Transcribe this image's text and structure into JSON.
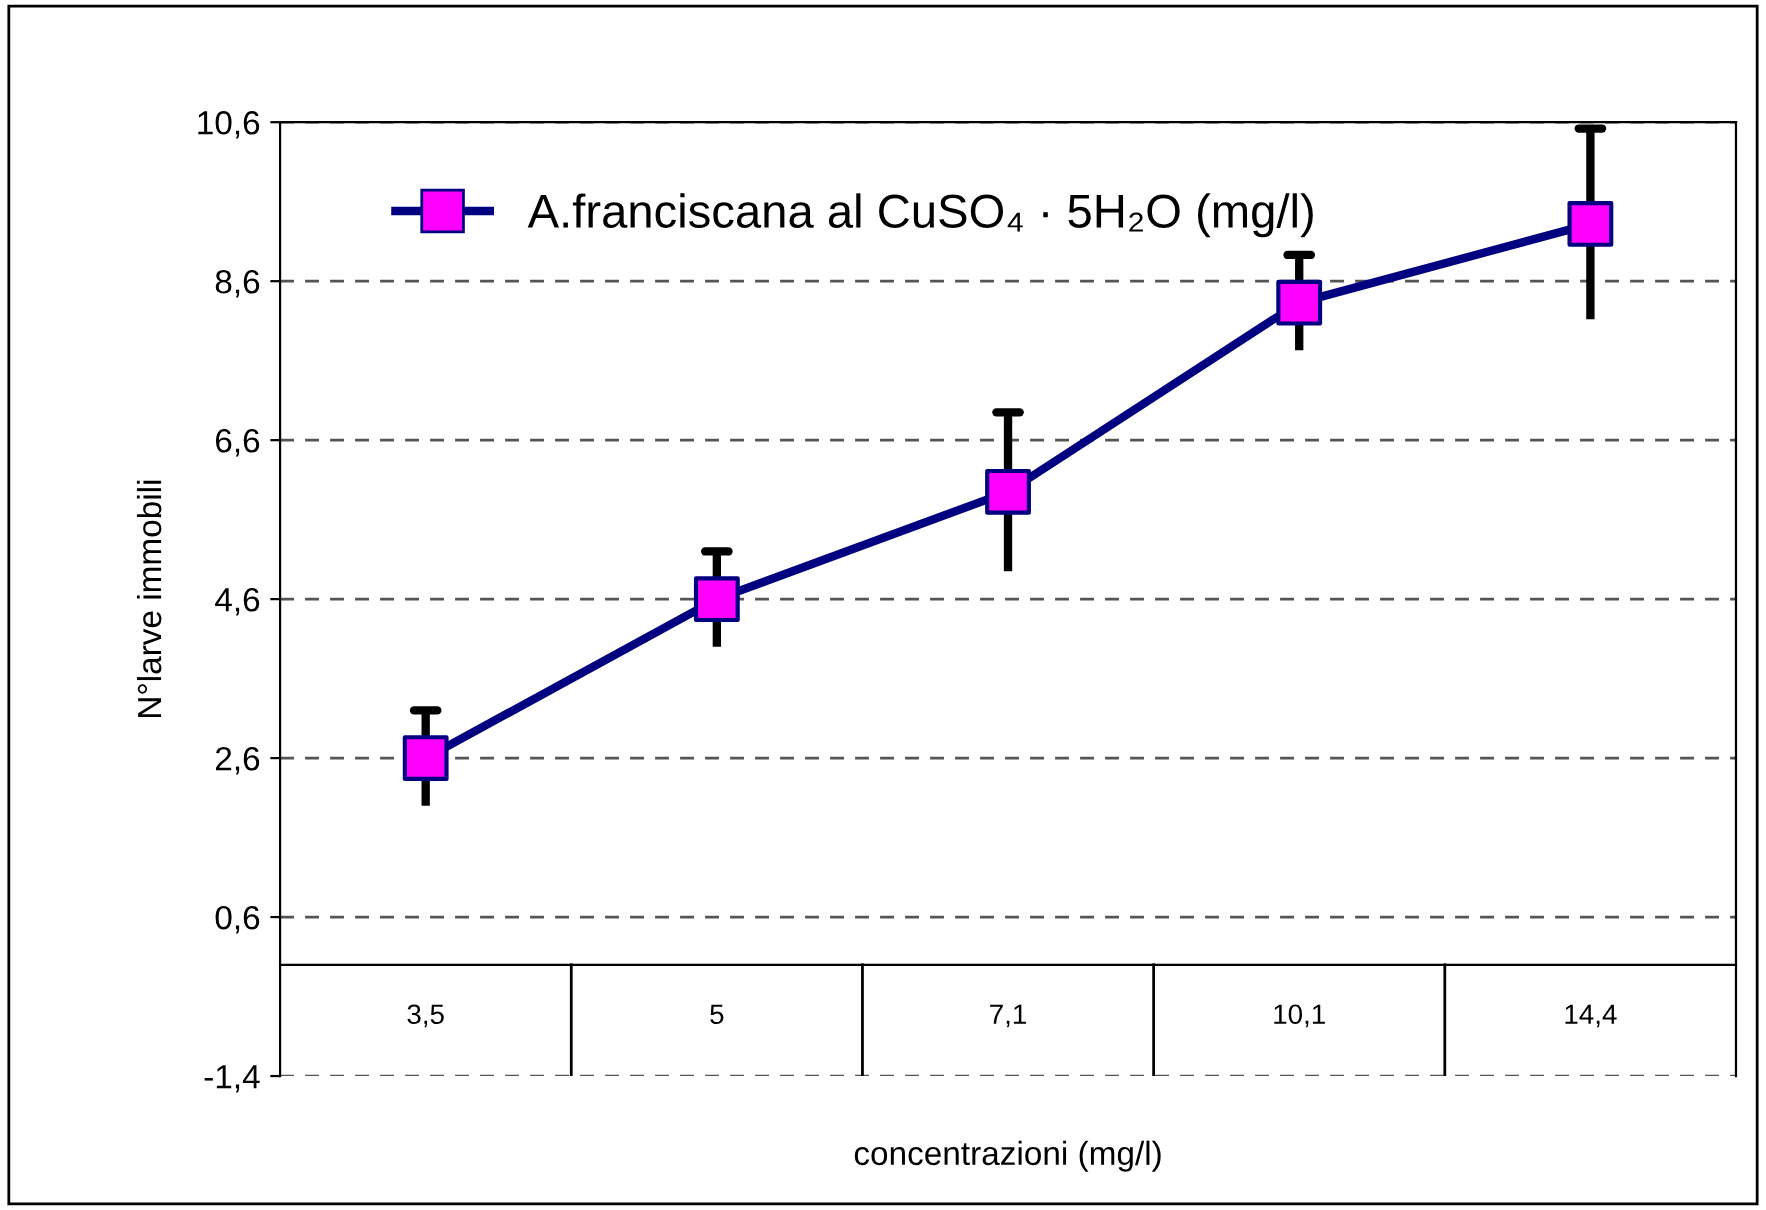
{
  "chart_data": {
    "type": "line",
    "xlabel": "concentrazioni (mg/l)",
    "ylabel": "N°larve immobili",
    "categories": [
      "3,5",
      "5",
      "7,1",
      "10,1",
      "14,4"
    ],
    "series": [
      {
        "name": "A.franciscana al CuSO₄ · 5H₂O (mg/l)",
        "color": "#000080",
        "colors": [
          "#ff00ff",
          "#ff00ff",
          "#ff00ff",
          "#ff00ff",
          "#ff00ff"
        ],
        "values": [
          2.6,
          4.6,
          5.95,
          8.33,
          9.32
        ],
        "errors": [
          0.6,
          0.6,
          1.0,
          0.6,
          1.2
        ]
      }
    ],
    "ylim": [
      -1.4,
      10.6
    ],
    "yticks": [
      {
        "value": -1.4,
        "label": "-1,4"
      },
      {
        "value": 0.6,
        "label": "0,6"
      },
      {
        "value": 2.6,
        "label": "2,6"
      },
      {
        "value": 4.6,
        "label": "4,6"
      },
      {
        "value": 6.6,
        "label": "6,6"
      },
      {
        "value": 8.6,
        "label": "8,6"
      },
      {
        "value": 10.6,
        "label": "10,6"
      }
    ],
    "grid": "y",
    "legend": "top left",
    "marker": "square",
    "line_style": "solid"
  }
}
